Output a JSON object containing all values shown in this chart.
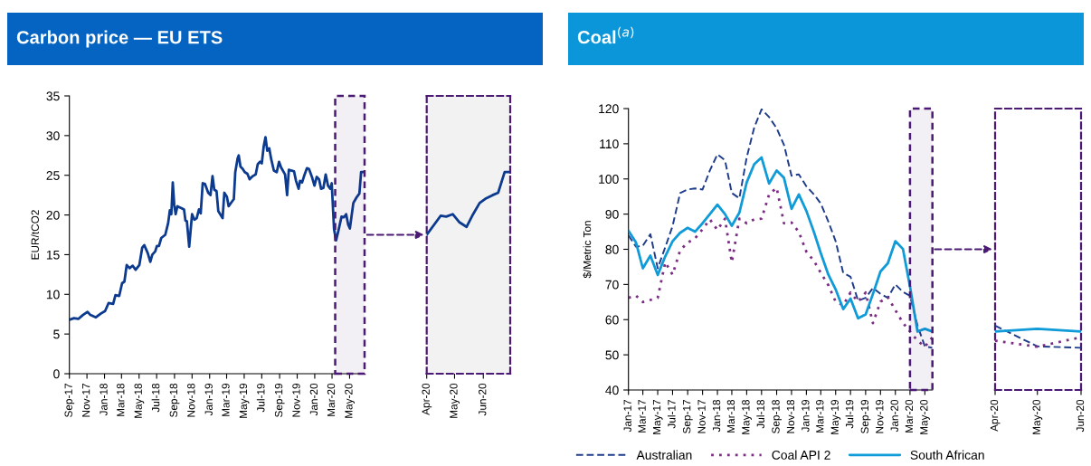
{
  "chart_data": [
    {
      "type": "line",
      "title": "Carbon price — EU ETS",
      "ylabel": "EUR/tCO2",
      "x": [
        "2017-09-01",
        "2017-09-17",
        "2017-10-02",
        "2017-10-18",
        "2017-11-03",
        "2017-11-13",
        "2017-12-02",
        "2017-12-20",
        "2018-01-03",
        "2018-01-15",
        "2018-01-31",
        "2018-02-08",
        "2018-02-21",
        "2018-03-03",
        "2018-03-11",
        "2018-03-19",
        "2018-03-29",
        "2018-04-09",
        "2018-04-19",
        "2018-05-02",
        "2018-05-12",
        "2018-05-19",
        "2018-05-31",
        "2018-06-09",
        "2018-06-16",
        "2018-06-26",
        "2018-07-02",
        "2018-07-09",
        "2018-07-17",
        "2018-07-31",
        "2018-08-10",
        "2018-08-16",
        "2018-08-21",
        "2018-08-26",
        "2018-08-31",
        "2018-09-05",
        "2018-09-11",
        "2018-09-23",
        "2018-10-04",
        "2018-10-09",
        "2018-10-14",
        "2018-10-22",
        "2018-11-01",
        "2018-11-09",
        "2018-11-17",
        "2018-11-25",
        "2018-12-01",
        "2018-12-08",
        "2018-12-16",
        "2018-12-27",
        "2019-01-04",
        "2019-01-11",
        "2019-01-17",
        "2019-01-25",
        "2019-01-31",
        "2019-02-15",
        "2019-02-21",
        "2019-03-02",
        "2019-03-08",
        "2019-03-18",
        "2019-03-26",
        "2019-03-31",
        "2019-04-08",
        "2019-04-12",
        "2019-04-18",
        "2019-04-26",
        "2019-05-03",
        "2019-05-12",
        "2019-05-20",
        "2019-05-31",
        "2019-06-10",
        "2019-06-17",
        "2019-06-25",
        "2019-07-01",
        "2019-07-08",
        "2019-07-14",
        "2019-07-20",
        "2019-07-27",
        "2019-08-03",
        "2019-08-12",
        "2019-08-22",
        "2019-08-30",
        "2019-09-06",
        "2019-09-20",
        "2019-09-27",
        "2019-10-03",
        "2019-10-11",
        "2019-10-21",
        "2019-10-28",
        "2019-11-06",
        "2019-11-11",
        "2019-11-18",
        "2019-11-25",
        "2019-12-05",
        "2019-12-12",
        "2019-12-23",
        "2019-12-31",
        "2020-01-08",
        "2020-01-16",
        "2020-01-23",
        "2020-01-31",
        "2020-02-08",
        "2020-02-16",
        "2020-02-24",
        "2020-02-29",
        "2020-03-08",
        "2020-03-15",
        "2020-03-23",
        "2020-04-03",
        "2020-04-11",
        "2020-04-19",
        "2020-04-26",
        "2020-05-02",
        "2020-05-14",
        "2020-05-25",
        "2020-06-04",
        "2020-06-10",
        "2020-06-20"
      ],
      "series": [
        {
          "color": "#0b3a8f",
          "line_style": "solid",
          "values": [
            6.8,
            7.0,
            6.9,
            7.4,
            7.8,
            7.4,
            7.1,
            7.6,
            7.9,
            8.9,
            8.8,
            9.9,
            9.8,
            11.4,
            11.6,
            13.7,
            13.3,
            13.6,
            13.1,
            13.7,
            15.9,
            16.2,
            15.2,
            14.1,
            15.0,
            15.4,
            16.1,
            16.1,
            17.1,
            17.5,
            19.0,
            20.6,
            20.1,
            24.1,
            21.3,
            20.1,
            21.1,
            20.9,
            20.7,
            19.3,
            19.2,
            16.0,
            20.1,
            19.4,
            19.6,
            20.7,
            20.2,
            24.0,
            23.9,
            22.8,
            22.5,
            24.9,
            23.2,
            23.0,
            20.5,
            19.6,
            22.8,
            22.3,
            21.1,
            21.6,
            22.0,
            25.4,
            27.1,
            27.5,
            26.1,
            25.8,
            25.4,
            25.2,
            24.5,
            24.9,
            25.1,
            26.4,
            26.7,
            26.5,
            28.7,
            29.8,
            28.1,
            28.4,
            27.0,
            25.6,
            25.4,
            26.7,
            26.0,
            25.1,
            22.5,
            25.7,
            25.6,
            25.5,
            24.3,
            23.3,
            24.3,
            24.1,
            24.9,
            25.9,
            25.8,
            24.7,
            23.7,
            24.8,
            24.5,
            23.3,
            23.4,
            25.1,
            23.7,
            23.3,
            24.0,
            18.2,
            16.8,
            18.0,
            19.8,
            19.7,
            20.1,
            18.8,
            18.3,
            21.5,
            22.2,
            22.7,
            25.4,
            25.4
          ]
        }
      ],
      "xlim": [
        "2017-09-01",
        "2020-06-22"
      ],
      "xticks": [
        {
          "value": "2017-09-01",
          "label": "Sep-17"
        },
        {
          "value": "2017-11-01",
          "label": "Nov-17"
        },
        {
          "value": "2018-01-01",
          "label": "Jan-18"
        },
        {
          "value": "2018-03-01",
          "label": "Mar-18"
        },
        {
          "value": "2018-05-01",
          "label": "May-18"
        },
        {
          "value": "2018-07-01",
          "label": "Jul-18"
        },
        {
          "value": "2018-09-01",
          "label": "Sep-18"
        },
        {
          "value": "2018-11-01",
          "label": "Nov-18"
        },
        {
          "value": "2019-01-01",
          "label": "Jan-19"
        },
        {
          "value": "2019-03-01",
          "label": "Mar-19"
        },
        {
          "value": "2019-05-01",
          "label": "May-19"
        },
        {
          "value": "2019-07-01",
          "label": "Jul-19"
        },
        {
          "value": "2019-09-01",
          "label": "Sep-19"
        },
        {
          "value": "2019-11-01",
          "label": "Nov-19"
        },
        {
          "value": "2020-01-01",
          "label": "Jan-20"
        },
        {
          "value": "2020-03-01",
          "label": "Mar-20"
        },
        {
          "value": "2020-05-01",
          "label": "May-20"
        }
      ],
      "ylim": [
        0,
        35
      ],
      "yticks": [
        0,
        5,
        10,
        15,
        20,
        25,
        30,
        35
      ],
      "bands": [
        {
          "axis": "x",
          "from": "2020-03-12",
          "to": "2020-06-22",
          "color": "#4b1a74"
        }
      ]
    },
    {
      "type": "line",
      "x": [
        "2020-04-01",
        "2020-04-16",
        "2020-04-22",
        "2020-04-29",
        "2020-05-06",
        "2020-05-14",
        "2020-05-21",
        "2020-05-28",
        "2020-06-04",
        "2020-06-11",
        "2020-06-17",
        "2020-06-24",
        "2020-06-30"
      ],
      "series": [
        {
          "color": "#0b3a8f",
          "line_style": "solid",
          "values": [
            17.5,
            19.9,
            19.8,
            20.1,
            19.1,
            18.5,
            20.1,
            21.5,
            22.1,
            22.5,
            22.8,
            25.4,
            25.4
          ]
        }
      ],
      "xlim": [
        "2020-04-01",
        "2020-06-30"
      ],
      "xticks": [
        {
          "value": "2020-04-01",
          "label": "Apr-20"
        },
        {
          "value": "2020-05-01",
          "label": "May-20"
        },
        {
          "value": "2020-06-01",
          "label": "Jun-20"
        }
      ],
      "ylim": [
        0,
        35
      ],
      "tick_labels": "x",
      "bands": [
        {
          "axis": "x",
          "from": "2020-04-01",
          "to": "2020-06-30",
          "color": "#f2f2f2"
        }
      ]
    },
    {
      "type": "line",
      "title": "Coal$^{(a)}$",
      "ylabel": "$/Metric Ton",
      "legend": "bottom",
      "x": [
        "2017-01",
        "2017-02",
        "2017-03",
        "2017-04",
        "2017-05",
        "2017-06",
        "2017-07",
        "2017-08",
        "2017-09",
        "2017-10",
        "2017-11",
        "2017-12",
        "2018-01",
        "2018-02",
        "2018-03",
        "2018-04",
        "2018-05",
        "2018-06",
        "2018-07",
        "2018-08",
        "2018-09",
        "2018-10",
        "2018-11",
        "2018-12",
        "2019-01",
        "2019-02",
        "2019-03",
        "2019-04",
        "2019-05",
        "2019-06",
        "2019-07",
        "2019-08",
        "2019-09",
        "2019-10",
        "2019-11",
        "2019-12",
        "2020-01",
        "2020-02",
        "2020-03",
        "2020-04",
        "2020-05",
        "2020-06"
      ],
      "series": [
        {
          "name": "Australian",
          "color": "#1f3c8c",
          "line_style": "dashed",
          "values": [
            84.0,
            80.7,
            81.0,
            84.3,
            74.6,
            80.6,
            86.6,
            96.0,
            97.0,
            97.3,
            97.0,
            102.4,
            107.0,
            105.3,
            96.0,
            94.5,
            106.1,
            114.6,
            119.8,
            117.6,
            114.4,
            109.7,
            100.9,
            101.3,
            97.9,
            95.6,
            93.0,
            87.9,
            82.3,
            73.3,
            72.2,
            65.4,
            66.2,
            69.0,
            67.3,
            66.2,
            70.0,
            67.9,
            66.8,
            58.3,
            52.4,
            52.0
          ]
        },
        {
          "name": "Coal API 2",
          "color": "#7b2c83",
          "line_style": "dotted",
          "values": [
            66.2,
            66.8,
            65.0,
            65.6,
            66.2,
            76.3,
            72.8,
            79.7,
            81.9,
            83.1,
            85.7,
            88.5,
            85.5,
            88.7,
            76.3,
            88.7,
            87.4,
            88.5,
            88.7,
            95.6,
            97.5,
            87.4,
            87.6,
            84.9,
            79.3,
            76.7,
            73.3,
            69.8,
            65.1,
            64.1,
            67.7,
            65.1,
            67.7,
            59.0,
            65.1,
            66.4,
            62.7,
            59.1,
            56.6,
            54.0,
            52.3,
            55.0
          ]
        },
        {
          "name": "South African",
          "color": "#0f9ad8",
          "line_style": "solid",
          "values": [
            85.3,
            81.9,
            74.6,
            78.2,
            72.7,
            78.0,
            82.3,
            84.7,
            86.1,
            85.0,
            87.4,
            90.0,
            92.7,
            90.0,
            86.7,
            90.4,
            99.0,
            104.2,
            106.1,
            98.7,
            102.4,
            100.3,
            91.5,
            95.6,
            90.9,
            84.9,
            78.9,
            72.8,
            68.6,
            63.0,
            66.0,
            60.4,
            61.5,
            67.3,
            73.7,
            76.0,
            82.3,
            80.1,
            69.4,
            56.6,
            57.4,
            56.6
          ]
        }
      ],
      "xlim": [
        "2017-01",
        "2020-06"
      ],
      "xticks": [
        {
          "value": "2017-01",
          "label": "Jan-17"
        },
        {
          "value": "2017-03",
          "label": "Mar-17"
        },
        {
          "value": "2017-05",
          "label": "May-17"
        },
        {
          "value": "2017-07",
          "label": "Jul-17"
        },
        {
          "value": "2017-09",
          "label": "Sep-17"
        },
        {
          "value": "2017-11",
          "label": "Nov-17"
        },
        {
          "value": "2018-01",
          "label": "Jan-18"
        },
        {
          "value": "2018-03",
          "label": "Mar-18"
        },
        {
          "value": "2018-05",
          "label": "May-18"
        },
        {
          "value": "2018-07",
          "label": "Jul-18"
        },
        {
          "value": "2018-09",
          "label": "Sep-18"
        },
        {
          "value": "2018-11",
          "label": "Nov-18"
        },
        {
          "value": "2019-01",
          "label": "Jan-19"
        },
        {
          "value": "2019-03",
          "label": "Mar-19"
        },
        {
          "value": "2019-05",
          "label": "May-19"
        },
        {
          "value": "2019-07",
          "label": "Jul-19"
        },
        {
          "value": "2019-09",
          "label": "Sep-19"
        },
        {
          "value": "2019-11",
          "label": "Nov-19"
        },
        {
          "value": "2020-01",
          "label": "Jan-20"
        },
        {
          "value": "2020-03",
          "label": "Mar-20"
        },
        {
          "value": "2020-05",
          "label": "May-20"
        }
      ],
      "ylim": [
        40,
        120
      ],
      "yticks": [
        40,
        50,
        60,
        70,
        80,
        90,
        100,
        110,
        120
      ],
      "bands": [
        {
          "axis": "x",
          "from": "2020-03",
          "to": "2020-06",
          "color": "#4b1a74"
        }
      ]
    },
    {
      "type": "line",
      "x": [
        "2020-04",
        "2020-05",
        "2020-06"
      ],
      "series": [
        {
          "color": "#1f3c8c",
          "line_style": "dashed",
          "values": [
            58.3,
            52.4,
            52.0
          ]
        },
        {
          "color": "#7b2c83",
          "line_style": "dotted",
          "values": [
            54.0,
            52.3,
            55.0
          ]
        },
        {
          "color": "#0f9ad8",
          "line_style": "solid",
          "values": [
            56.6,
            57.4,
            56.6
          ]
        }
      ],
      "xlim": [
        "2020-04",
        "2020-06"
      ],
      "xticks": [
        {
          "value": "2020-04",
          "label": "Apr-20"
        },
        {
          "value": "2020-05",
          "label": "May-20"
        },
        {
          "value": "2020-06",
          "label": "Jun-20"
        }
      ],
      "ylim": [
        40,
        120
      ],
      "tick_labels": "x"
    }
  ]
}
